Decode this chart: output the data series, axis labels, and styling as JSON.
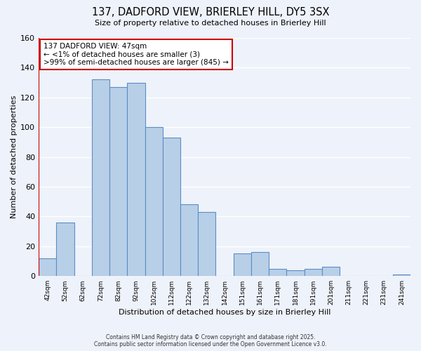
{
  "title_line1": "137, DADFORD VIEW, BRIERLEY HILL, DY5 3SX",
  "title_line2": "Size of property relative to detached houses in Brierley Hill",
  "xlabel": "Distribution of detached houses by size in Brierley Hill",
  "ylabel": "Number of detached properties",
  "bar_labels": [
    "42sqm",
    "52sqm",
    "62sqm",
    "72sqm",
    "82sqm",
    "92sqm",
    "102sqm",
    "112sqm",
    "122sqm",
    "132sqm",
    "142sqm",
    "151sqm",
    "161sqm",
    "171sqm",
    "181sqm",
    "191sqm",
    "201sqm",
    "211sqm",
    "221sqm",
    "231sqm",
    "241sqm"
  ],
  "bar_values": [
    12,
    36,
    0,
    132,
    127,
    130,
    100,
    93,
    48,
    43,
    0,
    15,
    16,
    5,
    4,
    5,
    6,
    0,
    0,
    0,
    1
  ],
  "bar_color": "#b8cfe8",
  "bar_edge_color": "#5b8ec4",
  "highlight_color": "#cc0000",
  "ylim": [
    0,
    160
  ],
  "yticks": [
    0,
    20,
    40,
    60,
    80,
    100,
    120,
    140,
    160
  ],
  "annotation_line1": "137 DADFORD VIEW: 47sqm",
  "annotation_line2": "← <1% of detached houses are smaller (3)",
  "annotation_line3": ">99% of semi-detached houses are larger (845) →",
  "footer_line1": "Contains HM Land Registry data © Crown copyright and database right 2025.",
  "footer_line2": "Contains public sector information licensed under the Open Government Licence v3.0.",
  "background_color": "#eef2fa",
  "grid_color": "#ffffff",
  "fig_width": 6.0,
  "fig_height": 5.0,
  "dpi": 100
}
